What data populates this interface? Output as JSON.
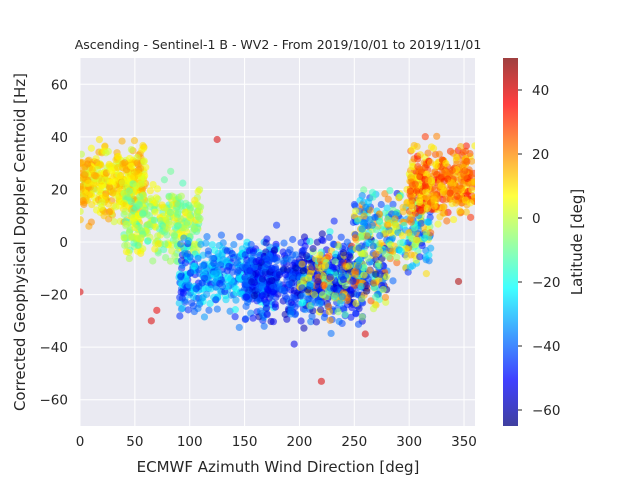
{
  "chart_data": {
    "type": "scatter",
    "title": "Ascending - Sentinel-1 B - WV2 - From 2019/10/01 to 2019/11/01",
    "xlabel": "ECMWF Azimuth Wind Direction [deg]",
    "ylabel": "Corrected Geophysical Doppler Centroid [Hz]",
    "xlim": [
      0,
      360
    ],
    "ylim": [
      -70,
      70
    ],
    "xticks": [
      0,
      50,
      100,
      150,
      200,
      250,
      300,
      350
    ],
    "yticks": [
      -60,
      -40,
      -20,
      0,
      20,
      40,
      60
    ],
    "grid": true,
    "background": "#eaeaf2",
    "marker_alpha": 0.55,
    "colorbar": {
      "label": "Latitude [deg]",
      "range": [
        -65,
        50
      ],
      "ticks": [
        -60,
        -40,
        -20,
        0,
        20,
        40
      ],
      "colormap": "jet"
    },
    "approximate_cloud": [
      {
        "x": [
          0,
          60
        ],
        "y": [
          5,
          40
        ],
        "lat": [
          0,
          20
        ],
        "count": 420
      },
      {
        "x": [
          40,
          110
        ],
        "y": [
          -10,
          25
        ],
        "lat": [
          -15,
          10
        ],
        "count": 320
      },
      {
        "x": [
          90,
          180
        ],
        "y": [
          -30,
          5
        ],
        "lat": [
          -50,
          -20
        ],
        "count": 420
      },
      {
        "x": [
          150,
          260
        ],
        "y": [
          -35,
          5
        ],
        "lat": [
          -60,
          -35
        ],
        "count": 520
      },
      {
        "x": [
          200,
          280
        ],
        "y": [
          -30,
          5
        ],
        "lat": [
          -65,
          30
        ],
        "count": 300
      },
      {
        "x": [
          250,
          320
        ],
        "y": [
          -15,
          25
        ],
        "lat": [
          -50,
          25
        ],
        "count": 300
      },
      {
        "x": [
          300,
          360
        ],
        "y": [
          5,
          40
        ],
        "lat": [
          5,
          35
        ],
        "count": 380
      }
    ],
    "outliers": [
      {
        "x": 125,
        "y": 39,
        "lat": 40
      },
      {
        "x": 220,
        "y": -53,
        "lat": 40
      },
      {
        "x": 0,
        "y": -19,
        "lat": 40
      },
      {
        "x": 345,
        "y": -15,
        "lat": 45
      },
      {
        "x": 260,
        "y": -35,
        "lat": 40
      },
      {
        "x": 65,
        "y": -30,
        "lat": 40
      },
      {
        "x": 70,
        "y": -26,
        "lat": 38
      }
    ]
  }
}
